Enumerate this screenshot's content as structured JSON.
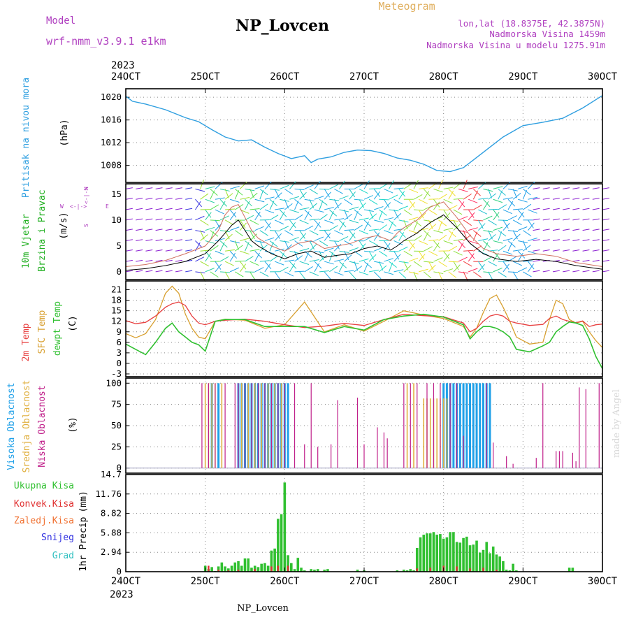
{
  "header": {
    "model_label": "Model",
    "model_value": "wrf-nmm_v3.9.1 e1km",
    "station": "NP_Lovcen",
    "meteogram": "Meteogram",
    "lonlat": "lon,lat (18.8375E, 42.3875N)",
    "altitude": "Nadmorska Visina 1459m",
    "model_altitude": "Nadmorska Visina u modelu 1275.91m",
    "year_top": "2023",
    "year_bottom": "2023",
    "footer_station": "NP_Lovcen",
    "credit": "made by Angel"
  },
  "colors": {
    "pressure": "#2f9fe0",
    "wind_label": "#22b022",
    "purple": "#b040c0",
    "temp2m": "#e84040",
    "sfc": "#d8a030",
    "dewpt": "#30c030",
    "high_cloud": "#1fa0e8",
    "mid_cloud": "#e0b040",
    "low_cloud": "#c0208a",
    "precip_total": "#30c030",
    "precip_conv": "#e03030"
  },
  "chart_data": [
    {
      "type": "line",
      "panel": "pressure",
      "ylabel": "Pritisak na nivou mora",
      "unit": "(hPa)",
      "x_ticks": [
        "24OCT",
        "25OCT",
        "26OCT",
        "27OCT",
        "28OCT",
        "29OCT",
        "30OCT"
      ],
      "xlim": [
        0,
        144
      ],
      "y_ticks": [
        "1008",
        "1012",
        "1016",
        "1020"
      ],
      "ylim": [
        1005,
        1021.5
      ],
      "series": [
        {
          "x": [
            0,
            2,
            6,
            12,
            18,
            22,
            26,
            30,
            34,
            38,
            42,
            46,
            50,
            54,
            56,
            58,
            60,
            62,
            66,
            70,
            74,
            78,
            82,
            86,
            90,
            94,
            98,
            102,
            106,
            110,
            114,
            120,
            126,
            132,
            138,
            144
          ],
          "values": [
            1020.2,
            1019.3,
            1018.8,
            1017.8,
            1016.4,
            1015.7,
            1014.3,
            1013,
            1012.3,
            1012.5,
            1011.2,
            1010.1,
            1009.2,
            1009.7,
            1008.5,
            1009.1,
            1009.3,
            1009.5,
            1010.3,
            1010.7,
            1010.6,
            1010.1,
            1009.3,
            1008.9,
            1008.2,
            1007.1,
            1006.9,
            1007.6,
            1009.4,
            1011.2,
            1013,
            1015,
            1015.6,
            1016.3,
            1018.1,
            1020.3
          ]
        }
      ]
    },
    {
      "type": "line",
      "panel": "wind",
      "ylabel_1": "10m Vjetar",
      "ylabel_2": "Brzina i Pravac",
      "unit": "(m/s)",
      "compass_n": "N",
      "compass_s": "S",
      "compass_w": "W",
      "compass_e": "E",
      "y_ticks": [
        "0",
        "5",
        "10",
        "15"
      ],
      "ylim": [
        -1.5,
        17
      ],
      "series": [
        {
          "name": "speed",
          "x": [
            0,
            6,
            12,
            18,
            24,
            28,
            30,
            32,
            34,
            36,
            38,
            40,
            44,
            48,
            52,
            56,
            60,
            64,
            68,
            72,
            76,
            80,
            82,
            84,
            88,
            92,
            96,
            100,
            104,
            108,
            112,
            118,
            124,
            130,
            136,
            144
          ],
          "values": [
            0.3,
            0.6,
            1.2,
            2,
            3.5,
            6,
            7.5,
            9,
            10,
            8,
            6,
            5,
            3.5,
            2.5,
            3.5,
            4,
            2.8,
            3.2,
            3.5,
            4.5,
            5,
            4.2,
            5,
            6,
            7.5,
            9.5,
            11,
            8.5,
            5.5,
            3.5,
            2.5,
            2,
            2.4,
            2,
            1.2,
            0.5
          ]
        },
        {
          "name": "gust",
          "x": [
            0,
            6,
            12,
            18,
            24,
            28,
            30,
            32,
            34,
            36,
            38,
            40,
            44,
            48,
            52,
            56,
            60,
            64,
            68,
            72,
            76,
            80,
            82,
            84,
            88,
            92,
            96,
            100,
            104,
            108,
            112,
            118,
            124,
            130,
            136,
            144
          ],
          "values": [
            1,
            1.4,
            2.2,
            3.5,
            5,
            8,
            11,
            12.5,
            13,
            10.5,
            8,
            6.5,
            5,
            4,
            5.5,
            6,
            4.5,
            5,
            5.5,
            6.5,
            7,
            6,
            7.5,
            8.5,
            10,
            12.5,
            13.5,
            10.5,
            7,
            4.5,
            3.5,
            3,
            3.5,
            3,
            1.8,
            1
          ]
        }
      ]
    },
    {
      "type": "line",
      "panel": "temperature",
      "unit": "(C)",
      "y_ticks": [
        "-3",
        "0",
        "3",
        "6",
        "9",
        "12",
        "15",
        "18",
        "21"
      ],
      "ylim": [
        -3.8,
        23.5
      ],
      "series": [
        {
          "name": "2m Temp",
          "x": [
            0,
            3,
            6,
            9,
            12,
            14,
            16,
            18,
            20,
            22,
            24,
            27,
            30,
            36,
            42,
            48,
            54,
            60,
            66,
            72,
            78,
            84,
            90,
            96,
            102,
            104,
            106,
            108,
            110,
            112,
            114,
            116,
            118,
            122,
            126,
            128,
            130,
            132,
            134,
            136,
            138,
            140,
            142,
            144
          ],
          "values": [
            12.2,
            11.3,
            11.7,
            13.5,
            16,
            17,
            17.5,
            16.5,
            13.5,
            11.5,
            11,
            12,
            12.3,
            12.6,
            12,
            11,
            10.2,
            10.6,
            11.4,
            10.8,
            12.5,
            14,
            13.6,
            13.3,
            11.5,
            9,
            10,
            12,
            13.5,
            14,
            13.5,
            12,
            11.5,
            10.8,
            11.1,
            12.8,
            13.5,
            12.5,
            12,
            11.6,
            12.1,
            10.5,
            11,
            11.2
          ]
        },
        {
          "name": "SFC Temp",
          "x": [
            0,
            3,
            6,
            9,
            12,
            14,
            16,
            18,
            20,
            22,
            24,
            27,
            30,
            36,
            42,
            48,
            54,
            60,
            66,
            72,
            78,
            84,
            90,
            96,
            102,
            104,
            106,
            108,
            110,
            112,
            114,
            116,
            118,
            122,
            126,
            128,
            130,
            132,
            134,
            136,
            138,
            140,
            142,
            144
          ],
          "values": [
            8.5,
            7.3,
            8.5,
            12.5,
            20,
            22,
            20,
            14,
            10,
            7.5,
            7,
            12,
            12.6,
            12.3,
            10,
            11,
            17.5,
            9,
            11,
            9.2,
            12,
            15,
            13.8,
            12.8,
            10.5,
            7.5,
            10,
            14.5,
            18.5,
            19.5,
            16,
            12,
            7.5,
            5.5,
            6,
            12.5,
            18,
            17,
            12.5,
            11.5,
            12,
            9,
            6.5,
            4.5
          ]
        },
        {
          "name": "dewpt Temp",
          "x": [
            0,
            3,
            6,
            9,
            12,
            14,
            16,
            18,
            20,
            22,
            24,
            27,
            30,
            36,
            42,
            48,
            54,
            60,
            66,
            72,
            78,
            84,
            90,
            96,
            102,
            104,
            106,
            108,
            110,
            112,
            114,
            116,
            118,
            122,
            126,
            128,
            130,
            132,
            134,
            136,
            138,
            140,
            142,
            144
          ],
          "values": [
            5.5,
            4,
            2.5,
            6,
            10,
            11.5,
            9,
            7.5,
            6,
            5.3,
            3.5,
            12,
            12.5,
            12.5,
            10.5,
            10.5,
            10.5,
            8.8,
            10.5,
            9.5,
            12.5,
            13.5,
            14,
            13.2,
            11,
            7,
            9,
            10.5,
            10.5,
            10,
            9,
            7.5,
            4,
            3.3,
            5,
            6,
            9,
            10.5,
            11.8,
            11.5,
            10.8,
            7,
            2,
            -1.5
          ]
        }
      ]
    },
    {
      "type": "bar",
      "panel": "clouds",
      "unit": "(%)",
      "y_ticks": [
        "0",
        "25",
        "50",
        "75",
        "100"
      ],
      "ylim": [
        0,
        100
      ],
      "series": [
        {
          "name": "Visoka Oblacnost",
          "x": [
            26,
            28,
            34,
            35,
            36,
            37,
            38,
            39,
            40,
            41,
            42,
            43,
            44,
            45,
            46,
            47,
            48,
            49,
            96,
            97,
            98,
            99,
            100,
            101,
            102,
            103,
            104,
            105,
            106,
            107,
            108,
            109,
            110
          ],
          "values": [
            100,
            100,
            100,
            100,
            100,
            100,
            100,
            100,
            100,
            100,
            100,
            100,
            100,
            100,
            100,
            100,
            100,
            100,
            100,
            100,
            100,
            100,
            100,
            100,
            100,
            100,
            100,
            100,
            100,
            100,
            100,
            100,
            100
          ]
        },
        {
          "name": "Srednja Oblacnost",
          "x": [
            24,
            25,
            26,
            27,
            29,
            35,
            37,
            39,
            41,
            43,
            45,
            47,
            85,
            87,
            90,
            91,
            92,
            93,
            94,
            95,
            96,
            97
          ],
          "values": [
            100,
            100,
            100,
            100,
            100,
            100,
            100,
            100,
            100,
            100,
            100,
            100,
            100,
            100,
            82,
            82,
            82,
            82,
            82,
            82,
            82,
            82
          ]
        },
        {
          "name": "Niska Oblacnost",
          "x": [
            23,
            25,
            27,
            30,
            33,
            34,
            36,
            38,
            40,
            42,
            44,
            46,
            48,
            51,
            54,
            56,
            58,
            62,
            64,
            70,
            72,
            76,
            78,
            79,
            84,
            86,
            88,
            91,
            93,
            95,
            98,
            100,
            102,
            109,
            111,
            115,
            117,
            124,
            126,
            130,
            131,
            132,
            135,
            136,
            137,
            139,
            143
          ],
          "values": [
            100,
            100,
            100,
            100,
            100,
            100,
            100,
            100,
            100,
            100,
            100,
            100,
            100,
            100,
            28,
            100,
            25,
            28,
            80,
            83,
            28,
            48,
            42,
            35,
            100,
            100,
            100,
            100,
            100,
            100,
            100,
            100,
            38,
            100,
            30,
            14,
            5,
            12,
            100,
            20,
            20,
            20,
            18,
            8,
            95,
            93,
            100
          ]
        }
      ]
    },
    {
      "type": "bar",
      "panel": "precipitation",
      "ylabel": "1hr Precip",
      "unit": "(mm)",
      "y_ticks": [
        "0",
        "2.94",
        "5.88",
        "8.82",
        "11.76",
        "14.7"
      ],
      "ylim": [
        0,
        14.7
      ],
      "legend": [
        "Ukupna Kisa",
        "Konvek.Kisa",
        "Zaledj.Kisa",
        "Snijeg",
        "Grad"
      ],
      "series": [
        {
          "name": "Ukupna Kisa",
          "x": [
            24,
            25,
            26,
            27,
            28,
            29,
            30,
            31,
            32,
            33,
            34,
            35,
            36,
            37,
            38,
            39,
            40,
            41,
            42,
            43,
            44,
            45,
            46,
            47,
            48,
            49,
            50,
            51,
            52,
            53,
            54,
            56,
            57,
            58,
            60,
            61,
            70,
            72,
            82,
            84,
            85,
            86,
            87,
            88,
            89,
            90,
            91,
            92,
            93,
            94,
            95,
            96,
            97,
            98,
            99,
            100,
            101,
            102,
            103,
            104,
            105,
            106,
            107,
            108,
            109,
            110,
            111,
            112,
            113,
            114,
            115,
            116,
            117,
            118,
            134,
            135
          ],
          "values": [
            0.9,
            0.4,
            0.7,
            0.1,
            0.8,
            1.4,
            0.8,
            0.5,
            0.9,
            1.4,
            1.6,
            0.9,
            2,
            2,
            0.6,
            0.9,
            0.7,
            1.2,
            1.3,
            0.9,
            3.2,
            3.5,
            8,
            8.7,
            13.5,
            2.5,
            1.3,
            0.4,
            2.1,
            0.6,
            0.2,
            0.4,
            0.3,
            0.4,
            0.3,
            0.4,
            0.3,
            0.2,
            0.2,
            0.3,
            0.2,
            0.4,
            0.2,
            3.6,
            5.2,
            5.6,
            5.8,
            5.8,
            6,
            5.6,
            5.7,
            5,
            5.2,
            6,
            6,
            4.5,
            4.4,
            5.1,
            5.3,
            4,
            4.1,
            4.7,
            2.9,
            3.3,
            4.5,
            2.8,
            3.8,
            2.6,
            2.3,
            1.6,
            0.3,
            0.2,
            1.2,
            0.2,
            0.6,
            0.6
          ]
        },
        {
          "name": "Konvek.Kisa",
          "x": [
            25,
            28,
            31,
            34,
            39,
            44,
            46,
            49,
            88,
            92,
            96,
            100,
            104,
            108,
            112
          ],
          "values": [
            0.9,
            0.3,
            0.2,
            0.3,
            0.4,
            0.8,
            0.9,
            0.9,
            0.5,
            0.6,
            0.9,
            0.8,
            0.5,
            0.6,
            0.3
          ]
        }
      ]
    }
  ]
}
